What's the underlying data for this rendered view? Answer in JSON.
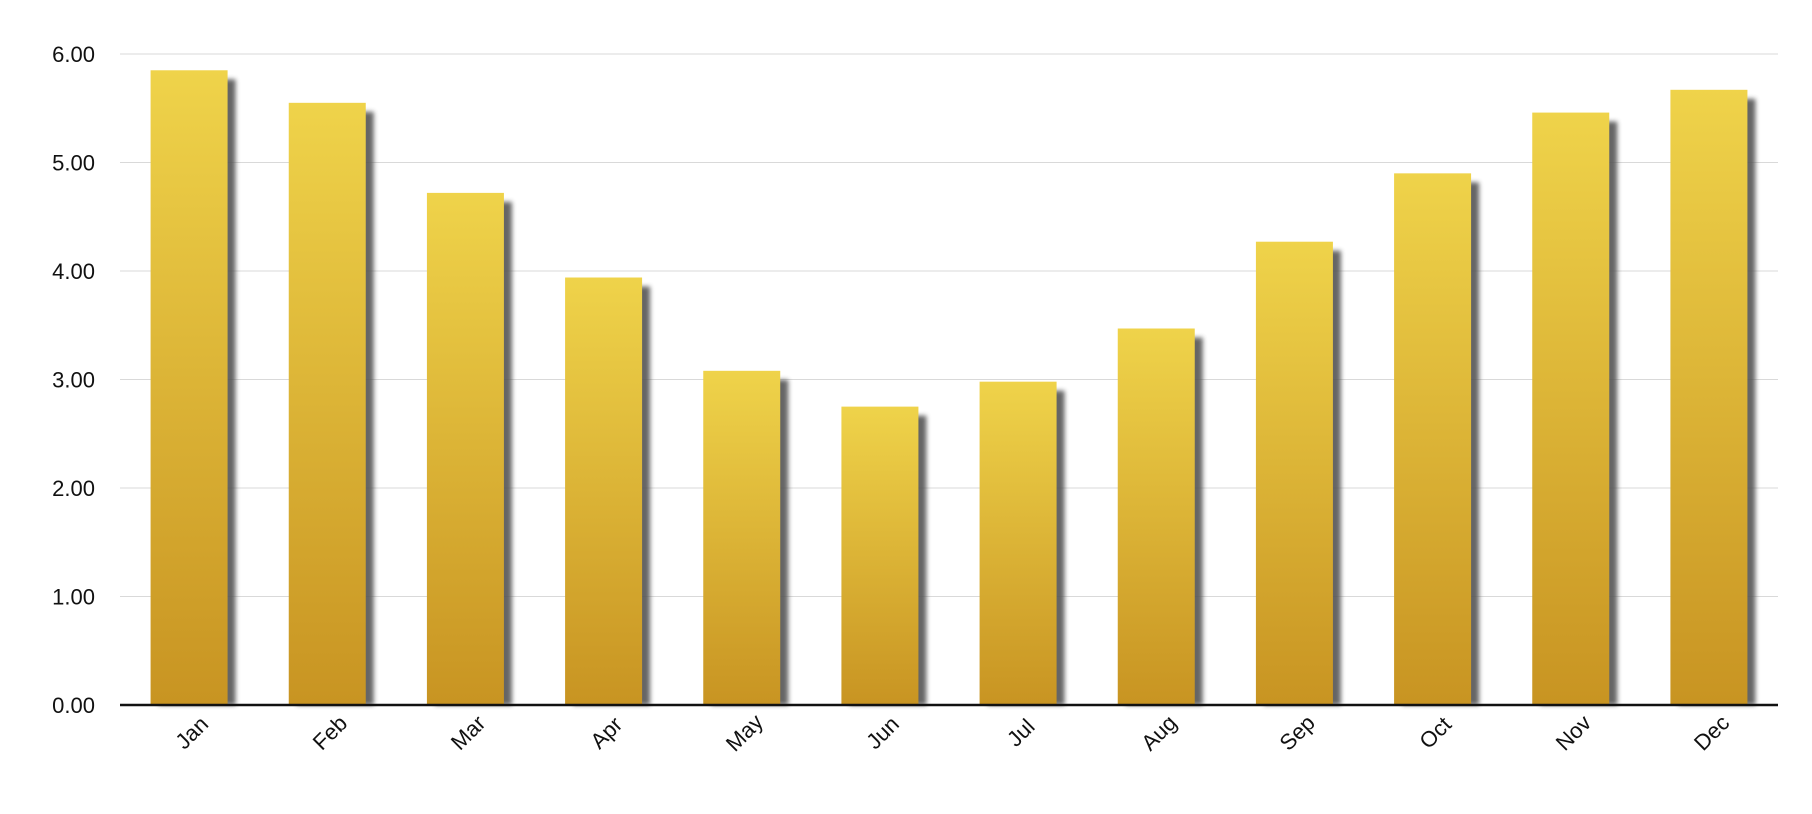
{
  "chart_data": {
    "type": "bar",
    "title": "",
    "xlabel": "",
    "ylabel": "",
    "categories": [
      "Jan",
      "Feb",
      "Mar",
      "Apr",
      "May",
      "Jun",
      "Jul",
      "Aug",
      "Sep",
      "Oct",
      "Nov",
      "Dec"
    ],
    "values": [
      5.85,
      5.55,
      4.72,
      3.94,
      3.08,
      2.75,
      2.98,
      3.47,
      4.27,
      4.9,
      5.46,
      5.67
    ],
    "ylim": [
      0,
      6
    ],
    "yticks": [
      "0.00",
      "1.00",
      "2.00",
      "3.00",
      "4.00",
      "5.00",
      "6.00"
    ],
    "grid": true,
    "legend": "none",
    "colors": {
      "bar_top": "#EFD34A",
      "bar_bottom": "#C89422",
      "shadow": "#555555",
      "grid": "#d9d9d9",
      "axis": "#111111"
    }
  }
}
